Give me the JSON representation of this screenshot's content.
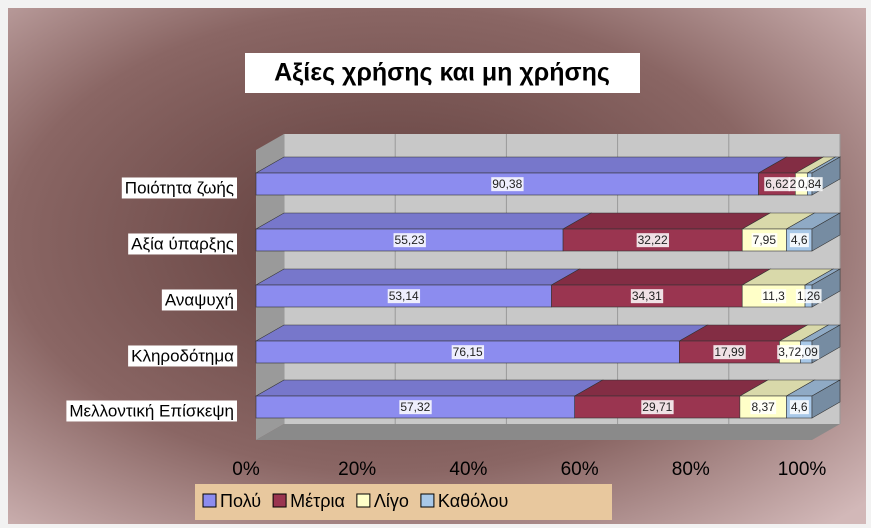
{
  "chart_data": {
    "type": "stacked_bar_3d_horizontal",
    "title": "Αξίες χρήσης και μη χρήσης",
    "categories": [
      "Ποιότητα ζωής",
      "Αξία ύπαρξης",
      "Αναψυχή",
      "Κληροδότημα",
      "Μελλοντική Επίσκεψη"
    ],
    "series": [
      {
        "name": "Πολύ",
        "color": "#8c8cef",
        "values": [
          90.38,
          55.23,
          53.14,
          76.15,
          57.32
        ],
        "value_labels": [
          "90,38",
          "55,23",
          "53,14",
          "76,15",
          "57,32"
        ]
      },
      {
        "name": "Μέτρια",
        "color": "#9a3550",
        "values": [
          6.62,
          32.22,
          34.31,
          17.99,
          29.71
        ],
        "value_labels": [
          "6,62",
          "32,22",
          "34,31",
          "17,99",
          "29,71"
        ]
      },
      {
        "name": "Λίγο",
        "color": "#ffffc8",
        "values": [
          2.16,
          7.95,
          11.3,
          3.77,
          8.37
        ],
        "value_labels": [
          "2,16",
          "7,95",
          "11,3",
          "3,77",
          "8,37"
        ]
      },
      {
        "name": "Καθόλου",
        "color": "#a8c8e8",
        "values": [
          0.84,
          4.6,
          1.26,
          2.09,
          4.6
        ],
        "value_labels": [
          "0,84",
          "4,6",
          "1,26",
          "2,09",
          "4,6"
        ]
      }
    ],
    "xlim": [
      0,
      100
    ],
    "xticks": [
      {
        "value": 0,
        "label": "0%"
      },
      {
        "value": 20,
        "label": "20%"
      },
      {
        "value": 40,
        "label": "40%"
      },
      {
        "value": 60,
        "label": "60%"
      },
      {
        "value": 80,
        "label": "80%"
      },
      {
        "value": 100,
        "label": "100%"
      }
    ],
    "grid": true
  }
}
